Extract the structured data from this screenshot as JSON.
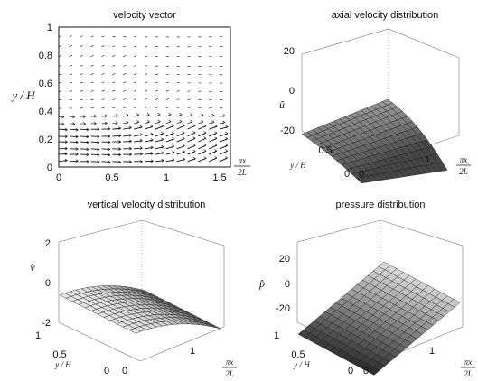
{
  "figure": {
    "bg": "#ffffff",
    "ink": "#111111",
    "mesh_line": "#1a1a1a"
  },
  "chart_data": [
    {
      "type": "vector-field",
      "title": "velocity vector",
      "xlabel_num": "πx",
      "xlabel_den": "2L",
      "ylabel": "y / H",
      "xlim": [
        0,
        1.6
      ],
      "ylim": [
        0,
        1
      ],
      "xticks": [
        "0",
        "0.5",
        "1",
        "1.5"
      ],
      "yticks": [
        "0",
        "0.2",
        "0.4",
        "0.6",
        "0.8",
        "1"
      ],
      "grid_x": [
        0,
        0.1,
        0.2,
        0.3,
        0.4,
        0.5,
        0.6,
        0.7,
        0.8,
        0.9,
        1.0,
        1.1,
        1.2,
        1.3,
        1.4,
        1.5
      ],
      "grid_y": [
        0.04,
        0.09,
        0.13,
        0.18,
        0.22,
        0.27,
        0.31,
        0.36,
        0.42,
        0.48,
        0.54,
        0.6,
        0.66,
        0.72,
        0.79,
        0.86,
        0.93
      ]
    },
    {
      "type": "surface",
      "title": "axial velocity distribution",
      "zlabel": "û",
      "ylabel": "y / H",
      "xlabel_num": "πx",
      "xlabel_den": "2L",
      "zticks": [
        "20",
        "0",
        "-20"
      ],
      "xticks": [
        "0",
        "1"
      ],
      "yticks": [
        "0.5",
        "0"
      ],
      "zlim": [
        -20,
        20
      ]
    },
    {
      "type": "surface",
      "title": "vertical velocity distribution",
      "zlabel": "v̂",
      "ylabel": "y / H",
      "xlabel_num": "πx",
      "xlabel_den": "2L",
      "zticks": [
        "2",
        "0",
        "-2"
      ],
      "xticks": [
        "0",
        "1"
      ],
      "yticks": [
        "1",
        "0.5",
        "0"
      ],
      "zlim": [
        -2,
        2
      ]
    },
    {
      "type": "surface",
      "title": "pressure distribution",
      "zlabel": "p̂",
      "ylabel": "y / H",
      "xlabel_num": "πx",
      "xlabel_den": "2L",
      "zticks": [
        "20",
        "0",
        "-20"
      ],
      "xticks": [
        "0",
        "1"
      ],
      "yticks": [
        "1",
        "0.5",
        "0"
      ],
      "zlim": [
        -20,
        20
      ]
    }
  ]
}
